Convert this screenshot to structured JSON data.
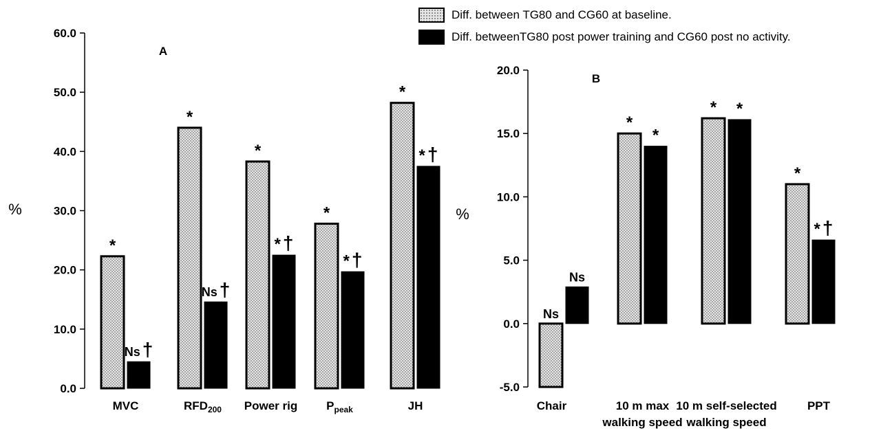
{
  "legend": {
    "items": [
      {
        "label": "Diff. between TG80 and CG60 at baseline.",
        "style": "dotted"
      },
      {
        "label": "Diff. betweenTG80 post power training and CG60 post no activity.",
        "style": "solid"
      }
    ]
  },
  "chart_data": [
    {
      "type": "bar",
      "panel_label": "A",
      "ylabel": "%",
      "ylim": [
        0,
        60
      ],
      "yticks": [
        "0.0",
        "10.0",
        "20.0",
        "30.0",
        "40.0",
        "50.0",
        "60.0"
      ],
      "categories": [
        {
          "label": "MVC",
          "sub": ""
        },
        {
          "label": "RFD",
          "sub": "200"
        },
        {
          "label": "Power rig",
          "sub": ""
        },
        {
          "label": "P",
          "sub": "peak"
        },
        {
          "label": "JH",
          "sub": ""
        }
      ],
      "series": [
        {
          "style": "dotted",
          "values": [
            22.3,
            44.0,
            38.3,
            27.8,
            48.2
          ],
          "annotations": [
            "*",
            "*",
            "*",
            "*",
            "*"
          ]
        },
        {
          "style": "solid",
          "values": [
            4.5,
            14.6,
            22.5,
            19.7,
            37.5
          ],
          "annotations": [
            "Ns†",
            "Ns†",
            "*†",
            "*†",
            "*†"
          ]
        }
      ]
    },
    {
      "type": "bar",
      "panel_label": "B",
      "ylabel": "%",
      "ylim": [
        -5,
        20
      ],
      "yticks": [
        "-5.0",
        "0.0",
        "5.0",
        "10.0",
        "15.0",
        "20.0"
      ],
      "categories": [
        {
          "label": "Chair",
          "line2": ""
        },
        {
          "label": "10 m max",
          "line2": "walking speed"
        },
        {
          "label": "10 m self-selected",
          "line2": "walking speed"
        },
        {
          "label": "PPT",
          "line2": ""
        }
      ],
      "series": [
        {
          "style": "dotted",
          "values": [
            -5.0,
            15.0,
            16.2,
            11.0
          ],
          "annotations": [
            "Ns",
            "*",
            "*",
            "*"
          ]
        },
        {
          "style": "solid",
          "values": [
            2.9,
            14.0,
            16.1,
            6.6
          ],
          "annotations": [
            "Ns",
            "*",
            "*",
            "*†"
          ]
        }
      ]
    }
  ]
}
